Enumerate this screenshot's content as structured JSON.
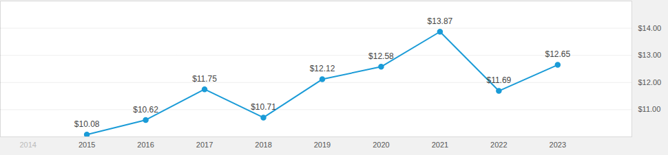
{
  "chart_data": {
    "type": "line",
    "x": [
      2015,
      2016,
      2017,
      2018,
      2019,
      2020,
      2021,
      2022,
      2023
    ],
    "values": [
      10.08,
      10.62,
      11.75,
      10.71,
      12.12,
      12.58,
      13.87,
      11.69,
      12.65
    ],
    "value_labels": [
      "$10.08",
      "$10.62",
      "$11.75",
      "$10.71",
      "$12.12",
      "$12.58",
      "$13.87",
      "$11.69",
      "$12.65"
    ],
    "color": "#1a9bd7",
    "marker": "circle",
    "xlim": [
      2013.53,
      2024.26
    ],
    "xticks": [
      2014,
      2015,
      2016,
      2017,
      2018,
      2019,
      2020,
      2021,
      2022,
      2023
    ],
    "ylim": [
      10,
      15
    ],
    "yticks": [
      {
        "value": 11,
        "label": "$11.00"
      },
      {
        "value": 12,
        "label": "$12.00"
      },
      {
        "value": 13,
        "label": "$13.00"
      },
      {
        "value": 14,
        "label": "$14.00"
      }
    ],
    "grid": true,
    "data_labels": true
  }
}
